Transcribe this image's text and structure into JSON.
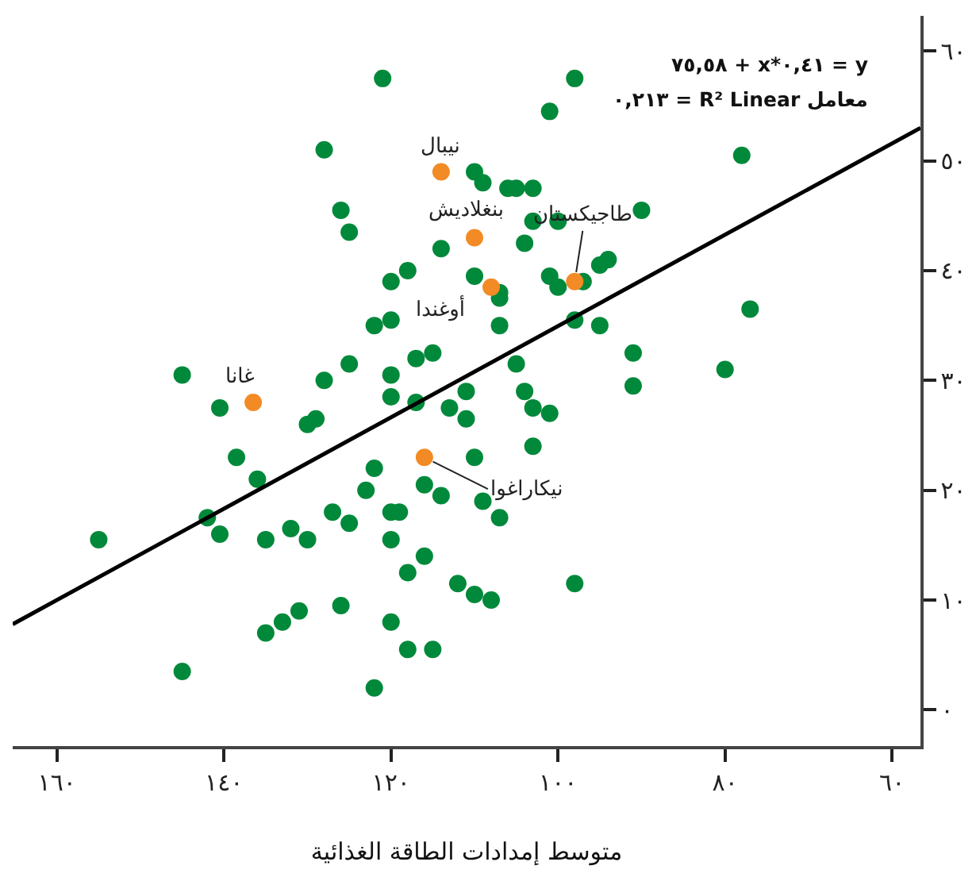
{
  "chart_data": {
    "type": "scatter",
    "xlabel": "متوسط إمدادات الطاقة الغذائية",
    "xlim": [
      165.3,
      56.6
    ],
    "xticks": [
      {
        "value": 160,
        "label": "١٦٠"
      },
      {
        "value": 140,
        "label": "١٤٠"
      },
      {
        "value": 120,
        "label": "١٢٠"
      },
      {
        "value": 100,
        "label": "١٠٠"
      },
      {
        "value": 80,
        "label": "٨٠"
      },
      {
        "value": 60,
        "label": "٦٠"
      }
    ],
    "ylim": [
      -3.3,
      63.2
    ],
    "yticks": [
      {
        "value": 0,
        "label": "٠"
      },
      {
        "value": 10,
        "label": "١٠"
      },
      {
        "value": 20,
        "label": "٢٠"
      },
      {
        "value": 30,
        "label": "٣٠"
      },
      {
        "value": 40,
        "label": "٤٠"
      },
      {
        "value": 50,
        "label": "٥٠"
      },
      {
        "value": 60,
        "label": "٦٠"
      }
    ],
    "marker": "circle",
    "series": [
      {
        "color": "#00893a",
        "x": [
          121,
          128,
          110,
          109,
          126,
          125,
          114,
          118,
          120,
          110,
          122,
          120,
          115,
          117,
          125,
          128,
          120,
          145,
          111,
          98,
          101,
          78,
          106,
          105,
          103,
          90,
          103,
          100,
          104,
          101,
          100,
          97,
          95,
          94,
          107,
          107,
          107,
          98,
          95,
          77,
          91,
          105,
          80,
          91,
          104,
          111,
          103,
          101,
          103,
          110,
          109,
          107,
          98,
          112,
          110,
          108,
          120,
          140.5,
          117,
          113,
          129,
          130,
          138.5,
          122,
          136,
          116,
          114,
          123,
          142,
          127,
          120,
          119,
          125,
          155,
          140.5,
          135,
          132,
          130,
          120,
          116,
          118,
          131,
          133,
          135,
          126,
          120,
          118,
          115,
          145,
          122
        ],
        "values": [
          57.5,
          51,
          49,
          48,
          45.5,
          43.5,
          42,
          40,
          39,
          39.5,
          35,
          35.5,
          32.5,
          32,
          31.5,
          30,
          30.5,
          30.5,
          29,
          57.5,
          54.5,
          50.5,
          47.5,
          47.5,
          47.5,
          45.5,
          44.5,
          44.5,
          42.5,
          39.5,
          38.5,
          39,
          40.5,
          41,
          38,
          37.5,
          35,
          35.5,
          35,
          36.5,
          32.5,
          31.5,
          31,
          29.5,
          29,
          26.5,
          27.5,
          27,
          24,
          23,
          19,
          17.5,
          11.5,
          11.5,
          10.5,
          10,
          28.5,
          27.5,
          28,
          27.5,
          26.5,
          26,
          23,
          22,
          21,
          20.5,
          19.5,
          20,
          17.5,
          18,
          18,
          18,
          17,
          15.5,
          16,
          15.5,
          16.5,
          15.5,
          15.5,
          14,
          12.5,
          9,
          8,
          7,
          9.5,
          8,
          5.5,
          5.5,
          3.5,
          2
        ]
      },
      {
        "color": "#f28b25",
        "x": [
          114,
          110,
          108,
          98,
          136.5,
          116
        ],
        "values": [
          49,
          43,
          38.5,
          39,
          28,
          23
        ]
      },
      {
        "type": "line",
        "color": "#000000",
        "marker": "none",
        "x": [
          165.3,
          56.6
        ],
        "values": [
          7.8,
          53.0
        ]
      }
    ],
    "annotations": [
      "٧٥,٥٨ + x*٠,٤١ = y",
      "٠,٢١٣ = R² Linear معامل",
      {
        "text": "نيبال",
        "x": 114,
        "y": 49
      },
      {
        "text": "بنغلاديش",
        "x": 110,
        "y": 43
      },
      {
        "text": "أوغندا",
        "x": 108,
        "y": 38.5
      },
      {
        "text": "طاجيكستان",
        "x": 98,
        "y": 39
      },
      {
        "text": "غانا",
        "x": 136.5,
        "y": 28
      },
      {
        "text": "نيكاراغوا",
        "x": 116,
        "y": 23
      }
    ]
  }
}
